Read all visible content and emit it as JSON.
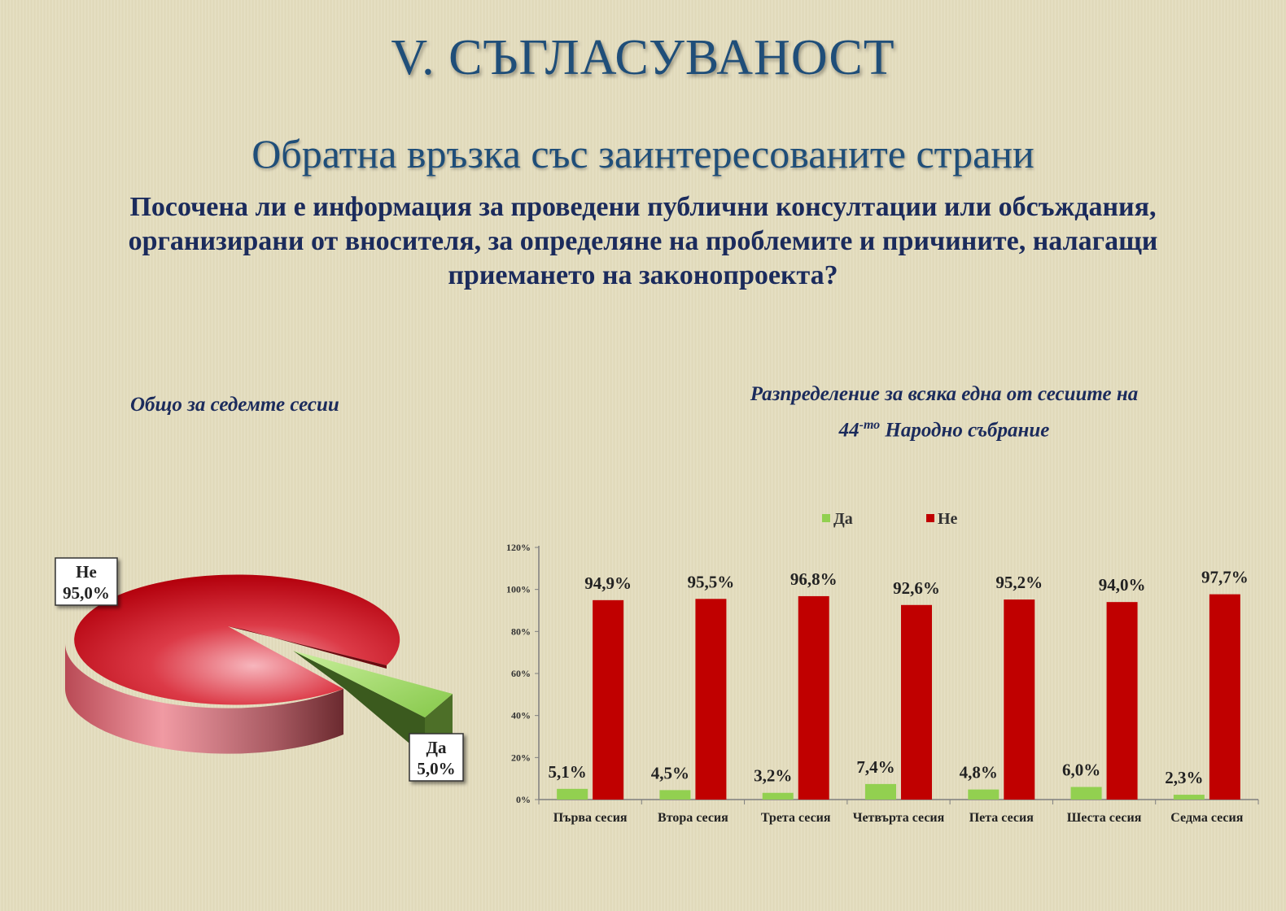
{
  "title": "V. СЪГЛАСУВАНОСТ",
  "subtitle": "Обратна връзка със заинтересованите страни",
  "question": "Посочена ли е информация за проведени публични консултации или обсъждания, организирани от вносителя, за определяне на проблемите и причините, налагащи приемането на законопроекта?",
  "colors": {
    "yes": "#92d050",
    "no": "#c00000",
    "title": "#1f4e79",
    "text": "#1b2b5c"
  },
  "chart_data": [
    {
      "type": "pie",
      "title": "Общо за седемте сесии",
      "slices": [
        {
          "label": "Не",
          "value": 95.0,
          "value_label": "95,0%"
        },
        {
          "label": "Да",
          "value": 5.0,
          "value_label": "5,0%"
        }
      ]
    },
    {
      "type": "bar",
      "title_line1": "Разпределение  за всяка една от сесиите на",
      "title_line2_number": "44",
      "title_line2_sup": "-то",
      "title_line2_text": " Народно събрание",
      "categories": [
        "Първа сесия",
        "Втора сесия",
        "Трета сесия",
        "Четвърта сесия",
        "Пета сесия",
        "Шеста сесия",
        "Седма сесия"
      ],
      "series": [
        {
          "name": "Да",
          "values": [
            5.1,
            4.5,
            3.2,
            7.4,
            4.8,
            6.0,
            2.3
          ],
          "labels": [
            "5,1%",
            "4,5%",
            "3,2%",
            "7,4%",
            "4,8%",
            "6,0%",
            "2,3%"
          ]
        },
        {
          "name": "Не",
          "values": [
            94.9,
            95.5,
            96.8,
            92.6,
            95.2,
            94.0,
            97.7
          ],
          "labels": [
            "94,9%",
            "95,5%",
            "96,8%",
            "92,6%",
            "95,2%",
            "94,0%",
            "97,7%"
          ]
        }
      ],
      "yticks": [
        "0%",
        "20%",
        "40%",
        "60%",
        "80%",
        "100%",
        "120%"
      ],
      "ylim": [
        0,
        120
      ],
      "legend": "top",
      "grid": false
    }
  ]
}
